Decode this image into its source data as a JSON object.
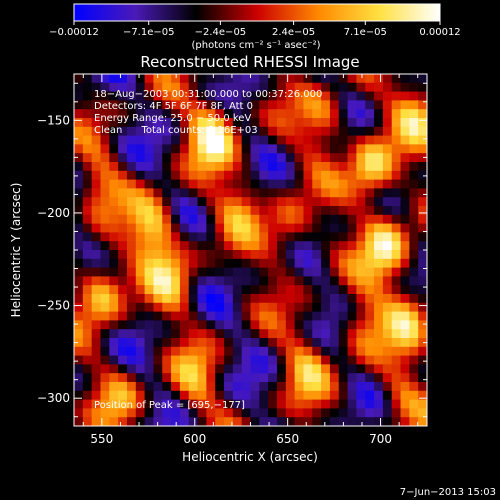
{
  "chart_data": {
    "type": "heatmap",
    "title": "Reconstructed RHESSI Image",
    "xlabel": "Heliocentric X (arcsec)",
    "ylabel": "Heliocentric Y (arcsec)",
    "xlim": [
      535,
      725
    ],
    "ylim": [
      -315,
      -125
    ],
    "x_ticks": [
      550,
      600,
      650,
      700
    ],
    "x_tick_labels": [
      "550",
      "600",
      "650",
      "700"
    ],
    "y_ticks": [
      -150,
      -200,
      -250,
      -300
    ],
    "y_tick_labels": [
      "−150",
      "−200",
      "−250",
      "−300"
    ],
    "colorbar": {
      "min": -0.00012,
      "max": 0.00012,
      "tick_values": [
        -0.00012,
        -7.1e-05,
        -2.4e-05,
        2.4e-05,
        7.1e-05,
        0.00012
      ],
      "tick_labels": [
        "−0.00012",
        "−7.1e−05",
        "−2.4e−05",
        "2.4e−05",
        "7.1e−05",
        "0.00012"
      ],
      "unit_label": "(photons cm⁻² s⁻¹ asec⁻²)",
      "colormap": [
        "#0000ff",
        "#4a1ab8",
        "#000000",
        "#cc0000",
        "#ff8800",
        "#ffe040",
        "#ffffff"
      ]
    },
    "annotations": [
      "18−Aug−2003 00:31:00.000 to 00:37:26.000",
      "Detectors: 4F 5F 6F 7F 8F, Att 0",
      "Energy Range: 25.0 − 50.0 keV",
      "Clean      Total counts: 5.16E+03"
    ],
    "peak_label": "Position of Peak = [695,−177]",
    "peak": [
      695,
      -177
    ],
    "sources": [
      {
        "x": 610,
        "y": -157,
        "v": 1.0
      },
      {
        "x": 695,
        "y": -177,
        "v": 1.0
      },
      {
        "x": 703,
        "y": -218,
        "v": 1.0
      },
      {
        "x": 578,
        "y": -208,
        "v": 0.9
      },
      {
        "x": 550,
        "y": -242,
        "v": 0.9
      },
      {
        "x": 720,
        "y": -145,
        "v": 0.7
      },
      {
        "x": 715,
        "y": -255,
        "v": 0.7
      },
      {
        "x": 670,
        "y": -150,
        "v": 0.6
      },
      {
        "x": 588,
        "y": -235,
        "v": 0.6
      },
      {
        "x": 650,
        "y": -210,
        "v": 0.6
      },
      {
        "x": 690,
        "y": -262,
        "v": 0.55
      },
      {
        "x": 660,
        "y": -285,
        "v": 0.55
      },
      {
        "x": 600,
        "y": -290,
        "v": 0.5
      },
      {
        "x": 710,
        "y": -300,
        "v": 0.45
      },
      {
        "x": 548,
        "y": -185,
        "v": 0.45
      },
      {
        "x": 625,
        "y": -195,
        "v": 0.5
      },
      {
        "x": 560,
        "y": -300,
        "v": 0.45
      }
    ]
  },
  "footer": {
    "timestamp": "7−Jun−2013 15:03"
  }
}
